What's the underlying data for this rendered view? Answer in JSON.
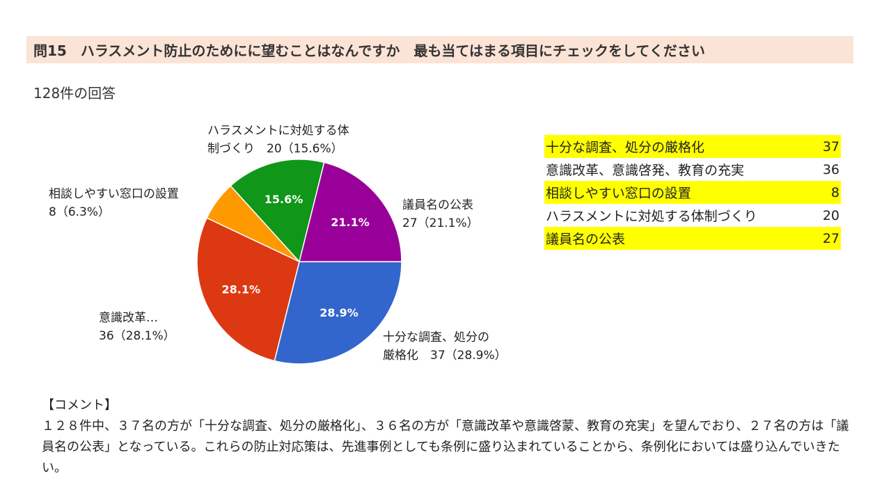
{
  "header": {
    "title": "問15　ハラスメント防止のためにに望むことはなんですか　最も当てはまる項目にチェックをしてください",
    "responses": "128件の回答"
  },
  "chart_data": {
    "type": "pie",
    "slices": [
      {
        "label": "十分な調査、処分の厳格化",
        "value": 37,
        "percent": 28.9,
        "color": "#3366cc",
        "callout": [
          "十分な調査、処分の",
          "厳格化　37（28.9%）"
        ]
      },
      {
        "label": "意識改革、意識啓発、教育の充実",
        "value": 36,
        "percent": 28.1,
        "color": "#dc3912",
        "callout": [
          "意識改革…",
          "36（28.1%）"
        ]
      },
      {
        "label": "相談しやすい窓口の設置",
        "value": 8,
        "percent": 6.3,
        "color": "#ff9900",
        "callout": [
          "相談しやすい窓口の設置",
          "8（6.3%）"
        ]
      },
      {
        "label": "ハラスメントに対処する体制づくり",
        "value": 20,
        "percent": 15.6,
        "color": "#109618",
        "callout": [
          "ハラスメントに対処する体",
          "制づくり　20（15.6%）"
        ]
      },
      {
        "label": "議員名の公表",
        "value": 27,
        "percent": 21.1,
        "color": "#990099",
        "callout": [
          "議員名の公表",
          "27（21.1%）"
        ]
      }
    ],
    "slice_labels": [
      "28.9%",
      "28.1%",
      "",
      "15.6%",
      "21.1%"
    ]
  },
  "table": {
    "rows": [
      {
        "label": "十分な調査、処分の厳格化",
        "value": "37",
        "highlight": true
      },
      {
        "label": "意識改革、意識啓発、教育の充実",
        "value": "36",
        "highlight": false
      },
      {
        "label": "相談しやすい窓口の設置",
        "value": "8",
        "highlight": true
      },
      {
        "label": "ハラスメントに対処する体制づくり",
        "value": "20",
        "highlight": false
      },
      {
        "label": "議員名の公表",
        "value": "27",
        "highlight": true
      }
    ],
    "highlight_color": "#ffff00"
  },
  "comment": {
    "heading": "【コメント】",
    "body": "１２８件中、３７名の方が「十分な調査、処分の厳格化」、３６名の方が「意識改革や意識啓蒙、教育の充実」を望んでおり、２７名の方は「議員名の公表」となっている。これらの防止対応策は、先進事例としても条例に盛り込まれていることから、条例化においては盛り込んでいきたい。"
  }
}
